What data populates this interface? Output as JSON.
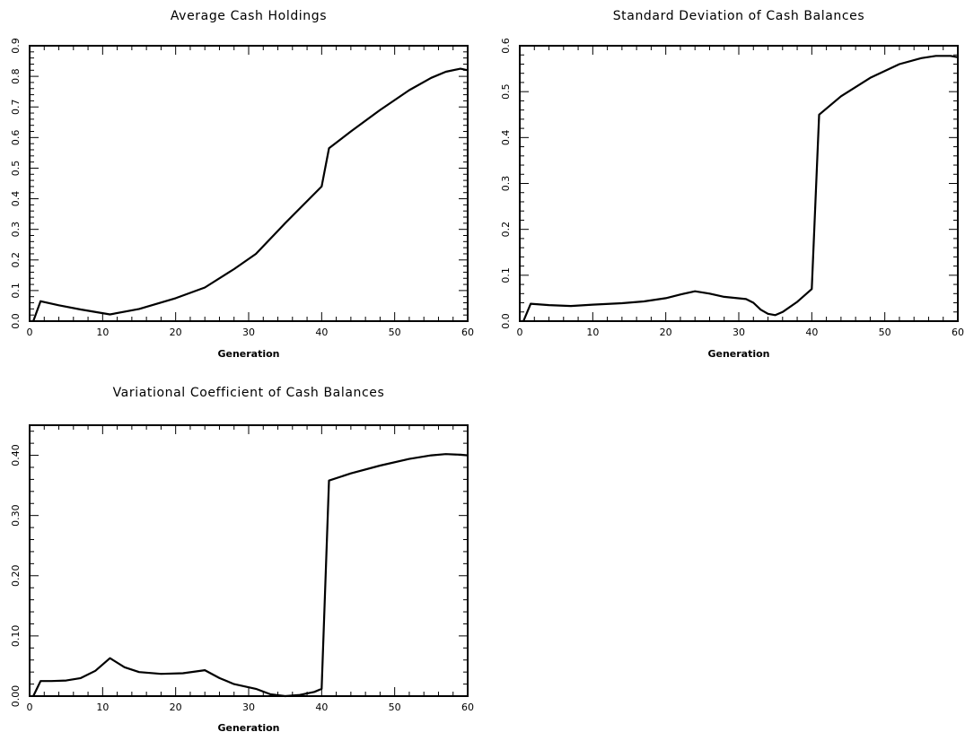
{
  "chart_data": [
    {
      "type": "line",
      "title": "Average Cash Holdings",
      "xlabel": "Generation",
      "ylabel": "",
      "xlim": [
        0,
        60
      ],
      "ylim": [
        0,
        0.9
      ],
      "xticks": [
        "0",
        "10",
        "20",
        "30",
        "40",
        "50",
        "60"
      ],
      "yticks": [
        "0.0",
        "0.1",
        "0.2",
        "0.3",
        "0.4",
        "0.5",
        "0.6",
        "0.7",
        "0.8",
        "0.9"
      ],
      "ytick_values": [
        0,
        0.1,
        0.2,
        0.3,
        0.4,
        0.5,
        0.6,
        0.7,
        0.8,
        0.9
      ],
      "grid": false,
      "series": [
        {
          "x": [
            0.5,
            1.5,
            4,
            7,
            11,
            15,
            20,
            24,
            28,
            31,
            35,
            40,
            41,
            44,
            48,
            52,
            55,
            57,
            59,
            60
          ],
          "y": [
            0.0,
            0.065,
            0.052,
            0.038,
            0.022,
            0.04,
            0.075,
            0.11,
            0.17,
            0.22,
            0.32,
            0.44,
            0.565,
            0.62,
            0.69,
            0.755,
            0.795,
            0.815,
            0.825,
            0.82
          ]
        }
      ]
    },
    {
      "type": "line",
      "title": "Standard Deviation of Cash Balances",
      "xlabel": "Generation",
      "ylabel": "",
      "xlim": [
        0,
        60
      ],
      "ylim": [
        0,
        0.6
      ],
      "xticks": [
        "0",
        "10",
        "20",
        "30",
        "40",
        "50",
        "60"
      ],
      "yticks": [
        "0.0",
        "0.1",
        "0.2",
        "0.3",
        "0.4",
        "0.5",
        "0.6"
      ],
      "ytick_values": [
        0,
        0.1,
        0.2,
        0.3,
        0.4,
        0.5,
        0.6
      ],
      "grid": false,
      "series": [
        {
          "x": [
            0.5,
            1.5,
            4,
            7,
            10,
            14,
            17,
            20,
            22,
            24,
            26,
            28,
            31,
            32,
            33,
            34,
            35,
            36,
            38,
            40,
            41,
            44,
            48,
            52,
            55,
            57,
            59,
            60
          ],
          "y": [
            0.0,
            0.038,
            0.035,
            0.033,
            0.036,
            0.039,
            0.043,
            0.05,
            0.058,
            0.065,
            0.06,
            0.053,
            0.048,
            0.04,
            0.025,
            0.016,
            0.013,
            0.02,
            0.042,
            0.07,
            0.45,
            0.49,
            0.53,
            0.56,
            0.573,
            0.578,
            0.578,
            0.575
          ]
        }
      ]
    },
    {
      "type": "line",
      "title": "Variational Coefficient of Cash Balances",
      "xlabel": "Generation",
      "ylabel": "",
      "xlim": [
        0,
        60
      ],
      "ylim": [
        0,
        0.45
      ],
      "xticks": [
        "0",
        "10",
        "20",
        "30",
        "40",
        "50",
        "60"
      ],
      "yticks": [
        "0.00",
        "0.10",
        "0.20",
        "0.30",
        "0.40"
      ],
      "ytick_values": [
        0,
        0.1,
        0.2,
        0.3,
        0.4
      ],
      "grid": false,
      "series": [
        {
          "x": [
            0.5,
            1.5,
            3,
            5,
            7,
            9,
            11,
            13,
            15,
            18,
            21,
            24,
            26,
            28,
            31,
            33,
            35,
            37,
            39,
            40,
            41,
            44,
            48,
            52,
            55,
            57,
            59,
            60
          ],
          "y": [
            0.0,
            0.025,
            0.025,
            0.026,
            0.03,
            0.042,
            0.063,
            0.048,
            0.04,
            0.037,
            0.038,
            0.043,
            0.03,
            0.02,
            0.012,
            0.003,
            0.0,
            0.002,
            0.007,
            0.012,
            0.358,
            0.37,
            0.383,
            0.394,
            0.4,
            0.402,
            0.401,
            0.4
          ]
        }
      ]
    }
  ]
}
